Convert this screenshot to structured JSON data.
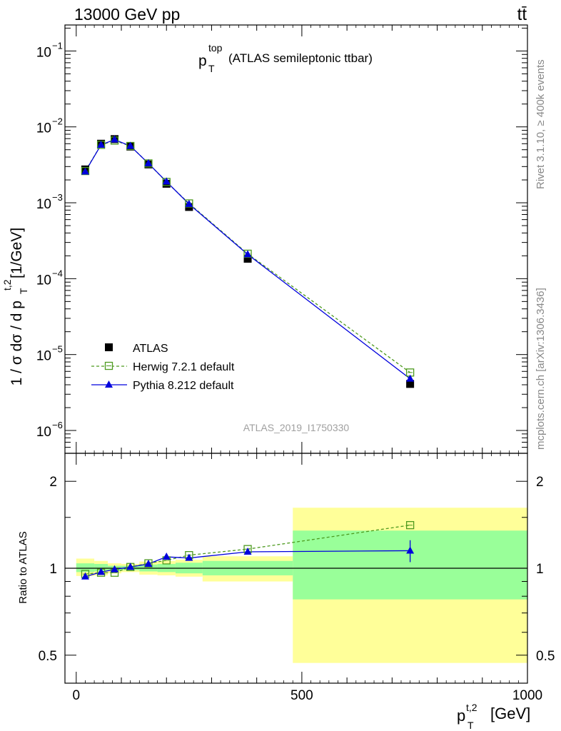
{
  "header": {
    "left": "13000 GeV pp",
    "right": "tt̄"
  },
  "side_labels": {
    "rivet": "Rivet 3.1.10, ≥ 400k events",
    "mcplots": "mcplots.cern.ch [arXiv:1306.3436]"
  },
  "chart_data": [
    {
      "type": "scatter",
      "panel": "main",
      "title_main": "p",
      "title_sup": "top",
      "title_sub": "T",
      "title_rest": "(ATLAS semileptonic ttbar)",
      "ylabel_main": "1 / σ dσ / d p",
      "ylabel_sup": "t,2",
      "ylabel_sub": "T",
      "ylabel_unit": "[1/GeV]",
      "ylim": [
        5e-07,
        0.22
      ],
      "yscale": "log",
      "y_ticks": [
        {
          "mant": "10",
          "exp": "−6",
          "value": 1e-06
        },
        {
          "mant": "10",
          "exp": "−5",
          "value": 1e-05
        },
        {
          "mant": "10",
          "exp": "−4",
          "value": 0.0001
        },
        {
          "mant": "10",
          "exp": "−3",
          "value": 0.001
        },
        {
          "mant": "10",
          "exp": "−2",
          "value": 0.01
        },
        {
          "mant": "10",
          "exp": "−1",
          "value": 0.1
        }
      ],
      "watermark": "ATLAS_2019_I1750330",
      "legend_position": "lower-left",
      "series": [
        {
          "name": "ATLAS",
          "color": "#000000",
          "marker": "square-filled",
          "line": "none",
          "x": [
            20,
            55,
            85,
            120,
            160,
            200,
            250,
            380,
            740
          ],
          "values": [
            0.00275,
            0.006,
            0.0069,
            0.0055,
            0.0032,
            0.00178,
            0.00088,
            0.000183,
            4.1e-06
          ]
        },
        {
          "name": "Herwig 7.2.1 default",
          "color": "#4d9a1f",
          "marker": "square-open",
          "line": "dashed",
          "x": [
            20,
            55,
            85,
            120,
            160,
            200,
            250,
            380,
            740
          ],
          "values": [
            0.00262,
            0.0058,
            0.0066,
            0.0056,
            0.0033,
            0.00188,
            0.00098,
            0.000213,
            5.8e-06
          ]
        },
        {
          "name": "Pythia 8.212 default",
          "color": "#0000dd",
          "marker": "triangle-filled",
          "line": "solid",
          "x": [
            20,
            55,
            85,
            120,
            160,
            200,
            250,
            380,
            740
          ],
          "values": [
            0.00257,
            0.0058,
            0.0068,
            0.0056,
            0.0033,
            0.0019,
            0.00096,
            0.000209,
            4.8e-06
          ]
        }
      ]
    },
    {
      "type": "scatter",
      "panel": "ratio",
      "ylabel": "Ratio to ATLAS",
      "ylim": [
        0.4,
        2.5
      ],
      "yscale": "log",
      "xlim": [
        -25,
        1000
      ],
      "x_ticks": [
        {
          "label": "0",
          "value": 0
        },
        {
          "label": "500",
          "value": 500
        },
        {
          "label": "1000",
          "value": 1000
        }
      ],
      "y_ticks": [
        {
          "label": "0.5",
          "value": 0.5
        },
        {
          "label": "1",
          "value": 1
        },
        {
          "label": "2",
          "value": 2
        }
      ],
      "xlabel_main": "p",
      "xlabel_sup": "t,2",
      "xlabel_sub": "T",
      "xlabel_unit": "[GeV]",
      "bins": [
        {
          "lo": 0,
          "hi": 40,
          "tot_lo": 0.94,
          "tot_hi": 1.08,
          "stat_lo": 0.97,
          "stat_hi": 1.04
        },
        {
          "lo": 40,
          "hi": 70,
          "tot_lo": 0.945,
          "tot_hi": 1.06,
          "stat_lo": 0.975,
          "stat_hi": 1.035
        },
        {
          "lo": 70,
          "hi": 100,
          "tot_lo": 0.96,
          "tot_hi": 1.04,
          "stat_lo": 0.98,
          "stat_hi": 1.02
        },
        {
          "lo": 100,
          "hi": 140,
          "tot_lo": 0.97,
          "tot_hi": 1.035,
          "stat_lo": 0.985,
          "stat_hi": 1.02
        },
        {
          "lo": 140,
          "hi": 180,
          "tot_lo": 0.95,
          "tot_hi": 1.055,
          "stat_lo": 0.975,
          "stat_hi": 1.03
        },
        {
          "lo": 180,
          "hi": 220,
          "tot_lo": 0.945,
          "tot_hi": 1.06,
          "stat_lo": 0.97,
          "stat_hi": 1.035
        },
        {
          "lo": 220,
          "hi": 280,
          "tot_lo": 0.935,
          "tot_hi": 1.07,
          "stat_lo": 0.96,
          "stat_hi": 1.045
        },
        {
          "lo": 280,
          "hi": 480,
          "tot_lo": 0.9,
          "tot_hi": 1.1,
          "stat_lo": 0.945,
          "stat_hi": 1.06
        },
        {
          "lo": 480,
          "hi": 1000,
          "tot_lo": 0.47,
          "tot_hi": 1.62,
          "stat_lo": 0.78,
          "stat_hi": 1.35
        }
      ],
      "series": [
        {
          "name": "Herwig 7.2.1 default",
          "x": [
            20,
            55,
            85,
            120,
            160,
            200,
            250,
            380,
            740
          ],
          "values": [
            0.955,
            0.965,
            0.965,
            1.01,
            1.04,
            1.065,
            1.11,
            1.165,
            1.41
          ]
        },
        {
          "name": "Pythia 8.212 default",
          "x": [
            20,
            55,
            85,
            120,
            160,
            200,
            250,
            380,
            740
          ],
          "values": [
            0.935,
            0.97,
            0.99,
            1.01,
            1.035,
            1.095,
            1.085,
            1.14,
            1.15
          ],
          "err_last": [
            1.05,
            1.25
          ]
        }
      ]
    }
  ]
}
